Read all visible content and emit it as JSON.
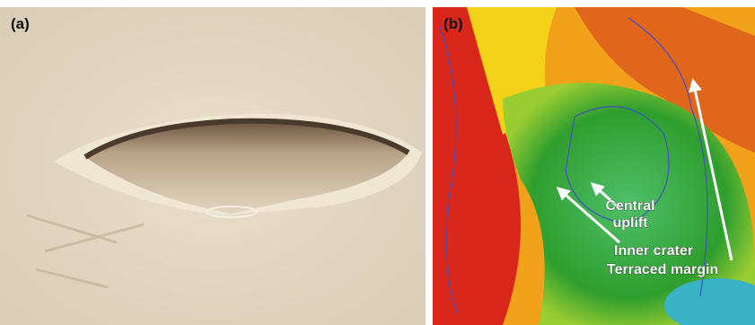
{
  "panels": [
    {
      "label": "(a)"
    },
    {
      "label": "(b)",
      "annotations": [
        {
          "lines": [
            "Central",
            "uplift"
          ]
        },
        {
          "lines": [
            "Inner crater"
          ]
        },
        {
          "lines": [
            "Terraced margin"
          ]
        }
      ]
    }
  ]
}
